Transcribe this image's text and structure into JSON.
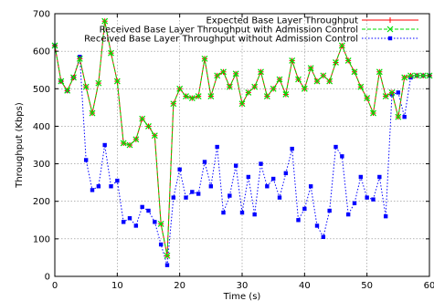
{
  "chart_data": {
    "type": "line",
    "xlabel": "Time (s)",
    "ylabel": "Throughput (Kbps)",
    "xlim": [
      0,
      60
    ],
    "ylim": [
      0,
      700
    ],
    "x_ticks": [
      0,
      10,
      20,
      30,
      40,
      50,
      60
    ],
    "y_ticks": [
      0,
      100,
      200,
      300,
      400,
      500,
      600,
      700
    ],
    "grid": true,
    "legend_position": "top-right",
    "series": [
      {
        "name": "Expected Base Layer Throughput",
        "color": "#ff0000",
        "style": "solid",
        "marker": "plus",
        "x": [
          0,
          1,
          2,
          3,
          4,
          5,
          6,
          7,
          8,
          9,
          10,
          11,
          12,
          13,
          14,
          15,
          16,
          17,
          18,
          19,
          20,
          21,
          22,
          23,
          24,
          25,
          26,
          27,
          28,
          29,
          30,
          31,
          32,
          33,
          34,
          35,
          36,
          37,
          38,
          39,
          40,
          41,
          42,
          43,
          44,
          45,
          46,
          47,
          48,
          49,
          50,
          51,
          52,
          53,
          54,
          55,
          56,
          57,
          58,
          59,
          60
        ],
        "values": [
          615,
          520,
          495,
          530,
          580,
          505,
          435,
          515,
          680,
          595,
          520,
          355,
          350,
          365,
          420,
          400,
          375,
          140,
          55,
          460,
          500,
          480,
          475,
          480,
          580,
          480,
          535,
          545,
          505,
          540,
          460,
          490,
          505,
          545,
          480,
          500,
          525,
          485,
          575,
          525,
          500,
          555,
          520,
          535,
          520,
          570,
          615,
          575,
          545,
          505,
          475,
          435,
          545,
          480,
          490,
          425,
          530,
          535,
          535,
          535,
          535
        ]
      },
      {
        "name": "Received Base Layer Throughput with Admission Control",
        "color": "#00dd00",
        "style": "dashed",
        "marker": "x",
        "x": [
          0,
          1,
          2,
          3,
          4,
          5,
          6,
          7,
          8,
          9,
          10,
          11,
          12,
          13,
          14,
          15,
          16,
          17,
          18,
          19,
          20,
          21,
          22,
          23,
          24,
          25,
          26,
          27,
          28,
          29,
          30,
          31,
          32,
          33,
          34,
          35,
          36,
          37,
          38,
          39,
          40,
          41,
          42,
          43,
          44,
          45,
          46,
          47,
          48,
          49,
          50,
          51,
          52,
          53,
          54,
          55,
          56,
          57,
          58,
          59,
          60
        ],
        "values": [
          615,
          520,
          495,
          530,
          580,
          505,
          435,
          515,
          680,
          595,
          520,
          355,
          350,
          365,
          420,
          400,
          375,
          140,
          55,
          460,
          500,
          480,
          475,
          480,
          580,
          480,
          535,
          545,
          505,
          540,
          460,
          490,
          505,
          545,
          480,
          500,
          525,
          485,
          575,
          525,
          500,
          555,
          520,
          535,
          520,
          570,
          615,
          575,
          545,
          505,
          475,
          435,
          545,
          480,
          490,
          425,
          530,
          535,
          535,
          535,
          535
        ]
      },
      {
        "name": "Received Base Layer Throughput without Admission Control",
        "color": "#0000ff",
        "style": "dotted",
        "marker": "square",
        "x": [
          0,
          1,
          2,
          3,
          4,
          5,
          6,
          7,
          8,
          9,
          10,
          11,
          12,
          13,
          14,
          15,
          16,
          17,
          18,
          19,
          20,
          21,
          22,
          23,
          24,
          25,
          26,
          27,
          28,
          29,
          30,
          31,
          32,
          33,
          34,
          35,
          36,
          37,
          38,
          39,
          40,
          41,
          42,
          43,
          44,
          45,
          46,
          47,
          48,
          49,
          50,
          51,
          52,
          53,
          54,
          55,
          56,
          57,
          58,
          59,
          60
        ],
        "values": [
          615,
          520,
          495,
          530,
          585,
          310,
          230,
          240,
          350,
          240,
          255,
          145,
          155,
          135,
          185,
          175,
          145,
          85,
          30,
          210,
          285,
          210,
          225,
          220,
          305,
          240,
          345,
          170,
          215,
          295,
          170,
          265,
          165,
          300,
          240,
          260,
          210,
          275,
          340,
          150,
          180,
          240,
          135,
          105,
          175,
          345,
          320,
          165,
          195,
          265,
          210,
          205,
          265,
          160,
          485,
          490,
          425,
          530,
          535,
          535,
          535
        ]
      }
    ]
  }
}
